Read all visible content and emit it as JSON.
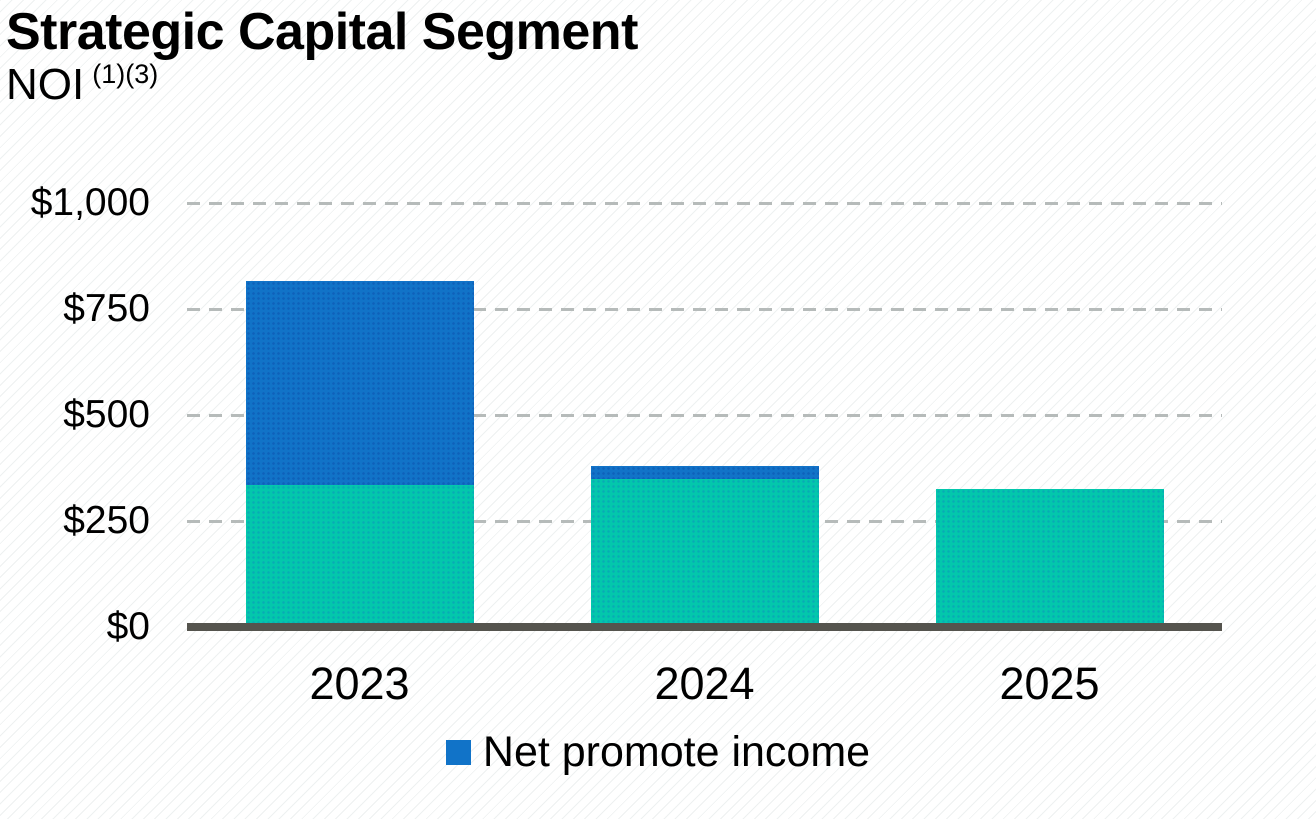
{
  "header": {
    "title": "Strategic Capital Segment",
    "subtitle": "NOI",
    "footnote_refs": "(1)(3)"
  },
  "chart_data": {
    "type": "bar",
    "stacked": true,
    "title": "Strategic Capital Segment NOI (1)(3)",
    "categories": [
      "2023",
      "2024",
      "2025"
    ],
    "series": [
      {
        "name": "",
        "legend_visible": false,
        "color": "#03C7AC",
        "values": [
          335,
          350,
          325
        ]
      },
      {
        "name": "Net promote income",
        "legend_visible": true,
        "color": "#1173C8",
        "values": [
          480,
          30,
          0
        ]
      }
    ],
    "totals": [
      815,
      380,
      325
    ],
    "xlabel": "",
    "ylabel": "",
    "ylim": [
      0,
      1000
    ],
    "yticks": {
      "values": [
        0,
        250,
        500,
        750,
        1000
      ],
      "labels": [
        "$0",
        "$250",
        "$500",
        "$750",
        "$1,000"
      ]
    },
    "grid": "horizontal-dashed",
    "legend_position": "bottom"
  },
  "colors": {
    "axis": "#55544E",
    "gridline": "#B6BBBA",
    "text": "#000000",
    "background": "#FFFFFF"
  }
}
